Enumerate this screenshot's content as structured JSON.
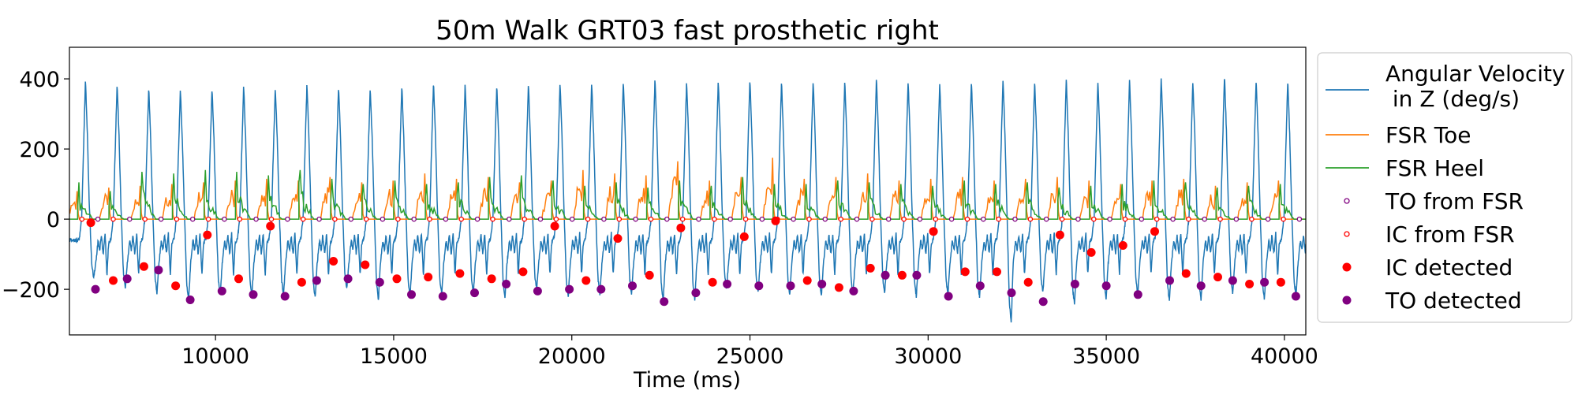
{
  "chart_data": {
    "type": "line",
    "title": "50m Walk GRT03 fast prosthetic right",
    "xlabel": "Time (ms)",
    "ylabel": "",
    "xlim": [
      5900,
      40600
    ],
    "ylim": [
      -330,
      490
    ],
    "xticks": [
      10000,
      15000,
      20000,
      25000,
      30000,
      35000,
      40000
    ],
    "yticks": [
      -200,
      0,
      200,
      400
    ],
    "xtick_labels": [
      "10000",
      "15000",
      "20000",
      "25000",
      "30000",
      "35000",
      "40000"
    ],
    "ytick_labels": [
      "−200",
      "0",
      "200",
      "400"
    ],
    "grid": false,
    "legend_position": "outside-right",
    "colors": {
      "angular_velocity": "#1f77b4",
      "fsr_toe": "#ff7f0e",
      "fsr_heel": "#2ca02c",
      "to_from_fsr": "#800080",
      "ic_from_fsr": "#ff0000",
      "ic_detected": "#ff0000",
      "to_detected": "#800080"
    },
    "series": [
      {
        "name": "Angular Velocity\n in Z (deg/s)",
        "kind": "line",
        "color": "#1f77b4",
        "gait_cycle_ms": 888,
        "first_peak_ms": 6350,
        "peak_values": [
          395,
          385,
          375,
          370,
          375,
          380,
          375,
          385,
          380,
          375,
          380,
          390,
          385,
          380,
          385,
          390,
          390,
          395,
          400,
          390,
          395,
          400,
          390,
          395,
          395,
          400,
          395,
          390,
          395,
          400,
          395,
          400,
          395,
          400,
          405,
          395,
          410,
          400,
          395
        ],
        "trough_values": [
          -165,
          -195,
          -210,
          -230,
          -215,
          -220,
          -215,
          -225,
          -200,
          -230,
          -220,
          -215,
          -210,
          -225,
          -200,
          -220,
          -215,
          -215,
          -235,
          -230,
          -200,
          -210,
          -215,
          -220,
          -215,
          -210,
          -220,
          -215,
          -225,
          -295,
          -210,
          -245,
          -225,
          -215,
          -235,
          -230,
          -215,
          -230,
          -220
        ]
      },
      {
        "name": "FSR Toe",
        "kind": "line",
        "color": "#ff7f0e",
        "peak_values": [
          80,
          90,
          95,
          100,
          105,
          110,
          115,
          110,
          120,
          105,
          110,
          130,
          115,
          120,
          105,
          110,
          140,
          130,
          125,
          165,
          110,
          120,
          175,
          115,
          120,
          130,
          110,
          115,
          120,
          110,
          115,
          120,
          110,
          100,
          110,
          115,
          95,
          105,
          110
        ]
      },
      {
        "name": "FSR Heel",
        "kind": "line",
        "color": "#2ca02c",
        "peak_values": [
          105,
          80,
          135,
          130,
          140,
          135,
          125,
          140,
          115,
          100,
          110,
          100,
          105,
          120,
          125,
          110,
          95,
          105,
          90,
          110,
          95,
          120,
          100,
          100,
          110,
          105,
          100,
          95,
          110,
          100,
          105,
          90,
          95,
          100,
          110,
          105,
          90,
          95,
          100
        ]
      },
      {
        "name": "TO from FSR",
        "kind": "scatter",
        "marker": "open-circle",
        "color": "#800080",
        "x": [
          6700,
          7590,
          8470,
          9360,
          10250,
          11140,
          12020,
          12910,
          13800,
          14690,
          15570,
          16460,
          17350,
          18240,
          19120,
          20010,
          20900,
          21790,
          22670,
          23560,
          24450,
          25340,
          26220,
          27110,
          28000,
          28890,
          29770,
          30660,
          31550,
          32440,
          33320,
          34210,
          35100,
          35990,
          36870,
          37760,
          38650,
          39540,
          40420
        ],
        "y": [
          0,
          0,
          0,
          0,
          0,
          0,
          0,
          0,
          0,
          0,
          0,
          0,
          0,
          0,
          0,
          0,
          0,
          0,
          0,
          0,
          0,
          0,
          0,
          0,
          0,
          0,
          0,
          0,
          0,
          0,
          0,
          0,
          0,
          0,
          0,
          0,
          0,
          0,
          0
        ]
      },
      {
        "name": "IC from FSR",
        "kind": "scatter",
        "marker": "open-circle",
        "color": "#ff0000",
        "x": [
          6250,
          7130,
          8020,
          8910,
          9800,
          10680,
          11570,
          12460,
          13350,
          14230,
          15120,
          16010,
          16900,
          17780,
          18670,
          19560,
          20450,
          21330,
          22220,
          23110,
          24000,
          24880,
          25770,
          26660,
          27550,
          28430,
          29320,
          30210,
          31100,
          31980,
          32870,
          33760,
          34650,
          35530,
          36420,
          37310,
          38200,
          39080,
          39970
        ],
        "y": [
          0,
          0,
          0,
          0,
          0,
          0,
          0,
          0,
          0,
          0,
          0,
          0,
          0,
          0,
          0,
          0,
          0,
          0,
          0,
          0,
          0,
          0,
          0,
          0,
          0,
          0,
          0,
          0,
          0,
          0,
          0,
          0,
          0,
          0,
          0,
          0,
          0,
          0,
          0
        ]
      },
      {
        "name": "IC detected",
        "kind": "scatter",
        "marker": "filled-circle",
        "color": "#ff0000",
        "x": [
          6500,
          7130,
          7990,
          8880,
          9770,
          10650,
          11540,
          12420,
          13310,
          14200,
          15090,
          15970,
          16860,
          17750,
          18630,
          19520,
          20400,
          21290,
          22180,
          23060,
          23950,
          24840,
          25720,
          26610,
          27500,
          28380,
          29270,
          30150,
          31040,
          31930,
          32810,
          33700,
          34580,
          35470,
          36360,
          37240,
          38130,
          39020,
          39900
        ],
        "y": [
          -10,
          -175,
          -135,
          -190,
          -45,
          -170,
          -20,
          -180,
          -120,
          -130,
          -170,
          -165,
          -155,
          -170,
          -150,
          -20,
          -175,
          -55,
          -160,
          -25,
          -180,
          -50,
          -5,
          -175,
          -195,
          -140,
          -160,
          -35,
          -150,
          -150,
          -180,
          -45,
          -95,
          -75,
          -35,
          -155,
          -165,
          -185,
          -180
        ]
      },
      {
        "name": "TO detected",
        "kind": "scatter",
        "marker": "filled-circle",
        "color": "#800080",
        "x": [
          6630,
          7520,
          8400,
          9290,
          10180,
          11060,
          11950,
          12840,
          13720,
          14610,
          15500,
          16380,
          17270,
          18160,
          19040,
          19930,
          20820,
          21700,
          22590,
          23480,
          24360,
          25250,
          26140,
          27020,
          27910,
          28800,
          29680,
          30570,
          31460,
          32340,
          33230,
          34120,
          35000,
          35890,
          36780,
          37660,
          38550,
          39440,
          40320
        ],
        "y": [
          -200,
          -170,
          -145,
          -230,
          -205,
          -215,
          -220,
          -175,
          -170,
          -180,
          -215,
          -220,
          -210,
          -185,
          -205,
          -200,
          -200,
          -190,
          -235,
          -210,
          -185,
          -190,
          -190,
          -185,
          -205,
          -160,
          -160,
          -220,
          -190,
          -210,
          -235,
          -185,
          -190,
          -215,
          -175,
          -190,
          -175,
          -180,
          -220
        ]
      }
    ]
  }
}
